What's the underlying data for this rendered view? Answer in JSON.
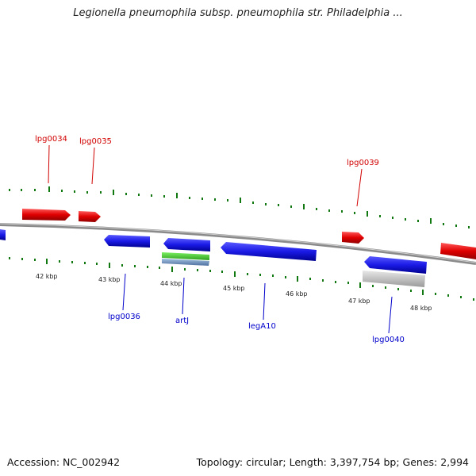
{
  "title": "Legionella pneumophila subsp. pneumophila str. Philadelphia ...",
  "footer": {
    "accession": "Accession: NC_002942",
    "summary": "Topology: circular; Length: 3,397,754 bp; Genes: 2,994"
  },
  "colors": {
    "forward_gene": "#e00000",
    "reverse_gene": "#1a1ae6",
    "rna_gene": "#4ccc33",
    "grey_feature": "#c8c8c8",
    "backbone": "#888888",
    "ticks": "#117711"
  },
  "scale_labels": [
    "42 kbp",
    "43 kbp",
    "44 kbp",
    "45 kbp",
    "46 kbp",
    "47 kbp",
    "48 kbp"
  ],
  "gene_labels": {
    "forward": [
      "lpg0034",
      "lpg0035",
      "lpg0039"
    ],
    "reverse": [
      "lpg0036",
      "artJ",
      "legA10",
      "lpg0040"
    ]
  }
}
